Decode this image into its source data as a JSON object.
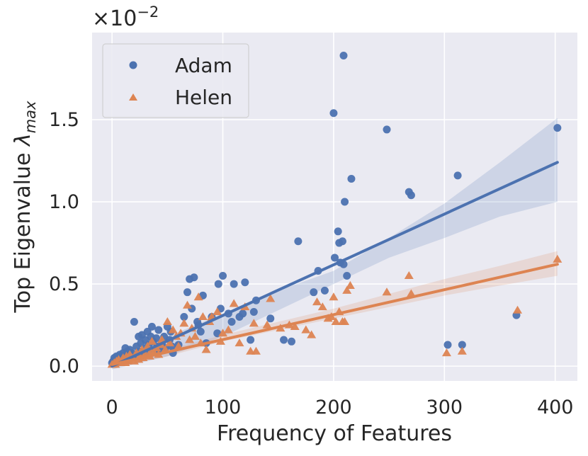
{
  "chart_data": {
    "type": "scatter",
    "xlabel": "Frequency of Features",
    "ylabel_main": "Top Eigenvalue ",
    "ylabel_symbol": "λ",
    "ylabel_subscript": "max",
    "y_scale_prefix": "×10",
    "y_scale_exponent": "−2",
    "xlim": [
      -18,
      420
    ],
    "ylim": [
      -0.09,
      2.03
    ],
    "x_ticks": [
      0,
      100,
      200,
      300,
      400
    ],
    "x_tick_labels": [
      "0",
      "100",
      "200",
      "300",
      "400"
    ],
    "y_ticks": [
      0.0,
      0.5,
      1.0,
      1.5
    ],
    "y_tick_labels": [
      "0.0",
      "0.5",
      "1.0",
      "1.5"
    ],
    "grid": true,
    "legend_position": "top-left",
    "colors": {
      "background": "#eaeaf2",
      "grid": "#ffffff",
      "adam": "#4c72b0",
      "helen": "#dd8452"
    },
    "series": [
      {
        "name": "Adam",
        "marker": "circle",
        "fit": {
          "x0": 0,
          "y0": 0.0,
          "x1": 402,
          "y1": 1.24
        },
        "band": {
          "x": [
            0,
            50,
            100,
            150,
            200,
            250,
            300,
            350,
            402
          ],
          "lower": [
            -0.02,
            0.06,
            0.18,
            0.34,
            0.5,
            0.66,
            0.78,
            0.91,
            1.0
          ],
          "upper": [
            0.02,
            0.18,
            0.32,
            0.46,
            0.58,
            0.78,
            0.99,
            1.24,
            1.51
          ]
        },
        "x": [
          0,
          1,
          2,
          3,
          4,
          5,
          6,
          7,
          8,
          9,
          10,
          11,
          12,
          13,
          14,
          15,
          16,
          18,
          19,
          20,
          22,
          24,
          25,
          26,
          27,
          28,
          30,
          31,
          32,
          33,
          34,
          35,
          36,
          37,
          38,
          40,
          41,
          42,
          43,
          45,
          47,
          48,
          50,
          52,
          53,
          54,
          55,
          60,
          65,
          68,
          70,
          72,
          74,
          77,
          78,
          80,
          82,
          85,
          90,
          95,
          96,
          98,
          100,
          105,
          108,
          110,
          115,
          118,
          120,
          125,
          128,
          130,
          143,
          155,
          162,
          168,
          182,
          186,
          192,
          201,
          204,
          205,
          206,
          208,
          209,
          210,
          212,
          216,
          248,
          268,
          270,
          303,
          312,
          316,
          365,
          402,
          200,
          209
        ],
        "y": [
          0.02,
          0.03,
          0.05,
          0.04,
          0.06,
          0.03,
          0.05,
          0.07,
          0.04,
          0.06,
          0.08,
          0.05,
          0.11,
          0.07,
          0.09,
          0.04,
          0.1,
          0.08,
          0.06,
          0.27,
          0.12,
          0.18,
          0.09,
          0.14,
          0.19,
          0.07,
          0.16,
          0.11,
          0.21,
          0.13,
          0.08,
          0.18,
          0.24,
          0.15,
          0.1,
          0.17,
          0.12,
          0.22,
          0.09,
          0.14,
          0.18,
          0.11,
          0.24,
          0.16,
          0.21,
          0.12,
          0.08,
          0.13,
          0.3,
          0.45,
          0.53,
          0.35,
          0.54,
          0.27,
          0.25,
          0.21,
          0.43,
          0.14,
          0.3,
          0.2,
          0.5,
          0.35,
          0.55,
          0.32,
          0.27,
          0.5,
          0.3,
          0.32,
          0.51,
          0.16,
          0.33,
          0.4,
          0.29,
          0.16,
          0.15,
          0.76,
          0.45,
          0.58,
          0.46,
          0.66,
          0.82,
          0.75,
          0.63,
          0.76,
          0.62,
          1.0,
          0.55,
          1.14,
          1.44,
          1.06,
          1.04,
          0.13,
          1.16,
          0.13,
          0.31,
          1.45,
          1.54,
          1.89
        ]
      },
      {
        "name": "Helen",
        "marker": "triangle",
        "fit": {
          "x0": 0,
          "y0": 0.01,
          "x1": 402,
          "y1": 0.62
        },
        "band": {
          "x": [
            0,
            50,
            100,
            150,
            200,
            250,
            300,
            350,
            402
          ],
          "lower": [
            -0.01,
            0.06,
            0.15,
            0.22,
            0.29,
            0.36,
            0.43,
            0.49,
            0.55
          ],
          "upper": [
            0.02,
            0.1,
            0.19,
            0.27,
            0.35,
            0.44,
            0.53,
            0.61,
            0.7
          ]
        },
        "x": [
          0,
          2,
          3,
          4,
          5,
          6,
          8,
          9,
          10,
          12,
          13,
          14,
          15,
          16,
          18,
          20,
          22,
          24,
          25,
          27,
          28,
          30,
          32,
          34,
          35,
          36,
          38,
          40,
          42,
          44,
          45,
          48,
          50,
          52,
          55,
          58,
          60,
          62,
          65,
          68,
          70,
          72,
          75,
          78,
          80,
          82,
          85,
          88,
          90,
          95,
          98,
          100,
          105,
          110,
          115,
          120,
          125,
          128,
          130,
          140,
          143,
          152,
          160,
          165,
          175,
          180,
          185,
          190,
          195,
          198,
          200,
          202,
          205,
          208,
          210,
          212,
          215,
          248,
          268,
          270,
          302,
          316,
          366,
          402
        ],
        "y": [
          0.01,
          0.02,
          0.01,
          0.03,
          0.02,
          0.04,
          0.02,
          0.03,
          0.05,
          0.02,
          0.06,
          0.03,
          0.04,
          0.07,
          0.05,
          0.03,
          0.08,
          0.04,
          0.06,
          0.1,
          0.05,
          0.07,
          0.12,
          0.06,
          0.09,
          0.15,
          0.08,
          0.11,
          0.07,
          0.13,
          0.16,
          0.1,
          0.27,
          0.14,
          0.22,
          0.18,
          0.12,
          0.2,
          0.26,
          0.37,
          0.16,
          0.23,
          0.18,
          0.42,
          0.14,
          0.3,
          0.1,
          0.27,
          0.3,
          0.33,
          0.15,
          0.2,
          0.22,
          0.38,
          0.14,
          0.36,
          0.09,
          0.26,
          0.09,
          0.25,
          0.41,
          0.23,
          0.25,
          0.24,
          0.22,
          0.19,
          0.39,
          0.36,
          0.29,
          0.3,
          0.42,
          0.27,
          0.33,
          0.27,
          0.27,
          0.46,
          0.49,
          0.45,
          0.55,
          0.44,
          0.08,
          0.09,
          0.34,
          0.65
        ]
      }
    ]
  }
}
